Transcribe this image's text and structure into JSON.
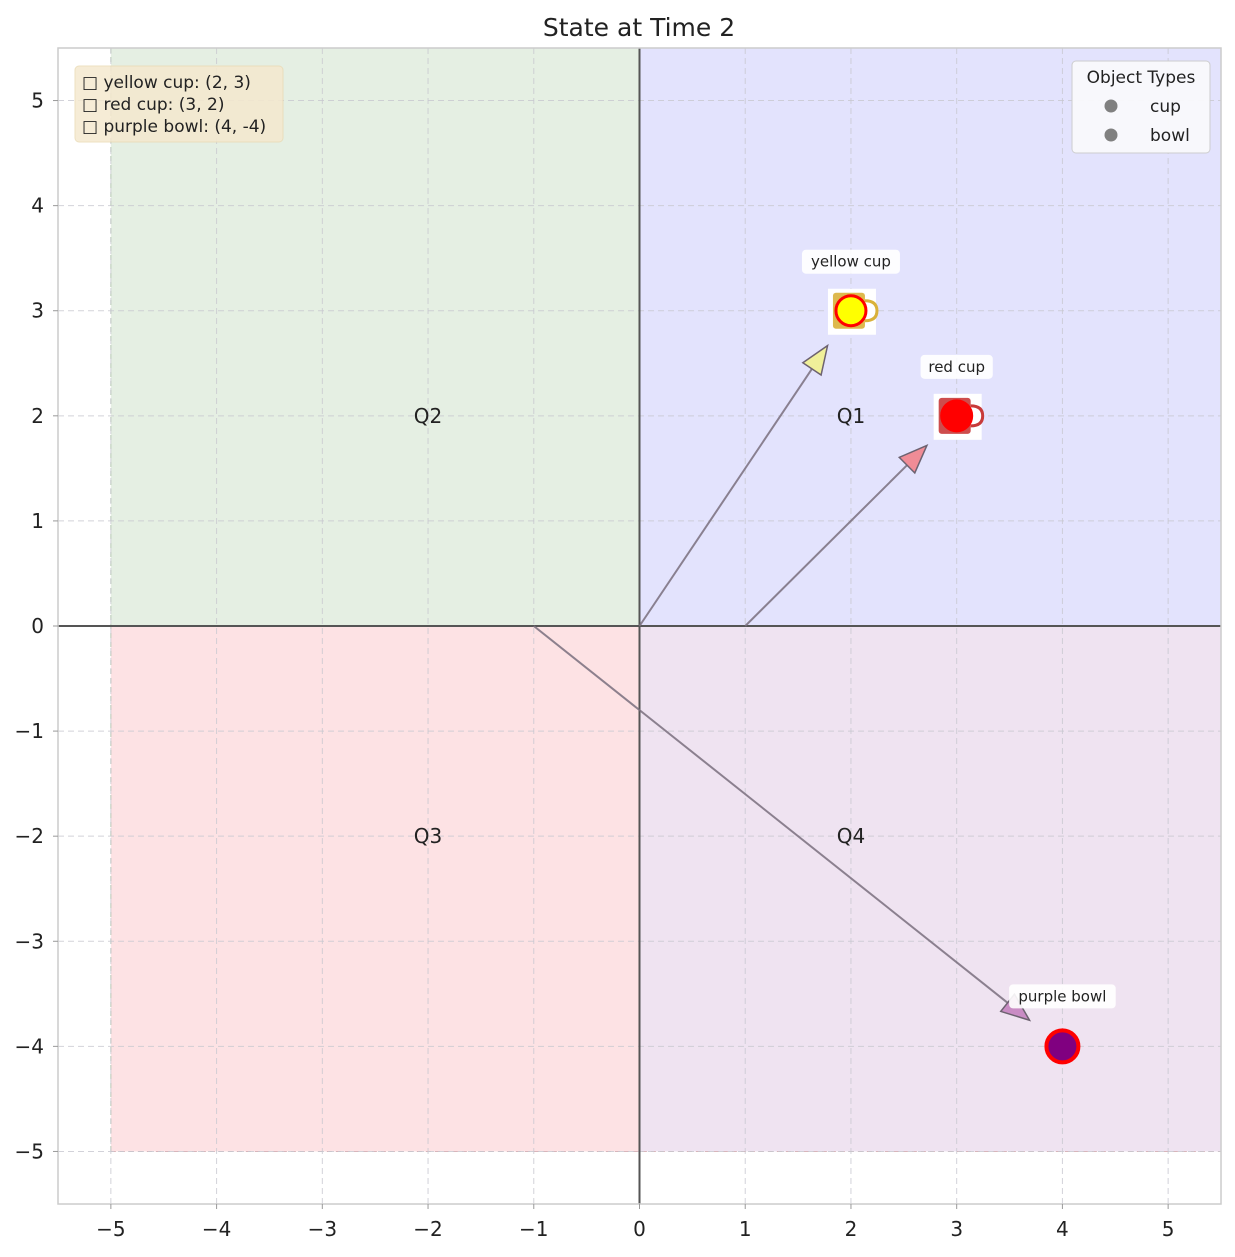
{
  "chart_data": {
    "type": "scatter",
    "title": "State at Time 2",
    "xlim": [
      -5.5,
      5.5
    ],
    "ylim": [
      -5.5,
      5.5
    ],
    "xticks": [
      -5,
      -4,
      -3,
      -2,
      -1,
      0,
      1,
      2,
      3,
      4,
      5
    ],
    "yticks": [
      -5,
      -4,
      -3,
      -2,
      -1,
      0,
      1,
      2,
      3,
      4,
      5
    ],
    "grid": true,
    "quadrants": [
      {
        "label": "Q1",
        "x": [
          0,
          5.5
        ],
        "y": [
          0,
          5.5
        ],
        "color": "#e3e3fd",
        "label_at": [
          2,
          2
        ]
      },
      {
        "label": "Q2",
        "x": [
          -5,
          0
        ],
        "y": [
          0,
          5.5
        ],
        "color": "#e5efe3",
        "label_at": [
          -2,
          2
        ]
      },
      {
        "label": "Q3",
        "x": [
          -5,
          0
        ],
        "y": [
          -5,
          0
        ],
        "color": "#fde2e4",
        "label_at": [
          -2,
          -2
        ]
      },
      {
        "label": "Q4",
        "x": [
          0,
          5.5
        ],
        "y": [
          -5,
          0
        ],
        "color": "#efe3f1",
        "label_at": [
          2,
          -2
        ]
      }
    ],
    "objects": [
      {
        "name": "yellow cup",
        "type": "cup",
        "x": 2,
        "y": 3,
        "color": "#ffff00",
        "edge": "#ff0000"
      },
      {
        "name": "red cup",
        "type": "cup",
        "x": 3,
        "y": 2,
        "color": "#ff0000",
        "edge": "#ff0000"
      },
      {
        "name": "purple bowl",
        "type": "bowl",
        "x": 4,
        "y": -4,
        "color": "#800080",
        "edge": "#ff0000"
      }
    ],
    "arrows": [
      {
        "from": [
          0,
          0
        ],
        "to": [
          2,
          3
        ],
        "head_color": "#f0f09a"
      },
      {
        "from": [
          1,
          0
        ],
        "to": [
          3,
          2
        ],
        "head_color": "#f08c96"
      },
      {
        "from": [
          -1,
          0
        ],
        "to": [
          4,
          -4
        ],
        "head_color": "#c98cc4"
      }
    ],
    "info_box": [
      "□ yellow cup: (2, 3)",
      "□ red cup: (3, 2)",
      "□ purple bowl: (4, -4)"
    ],
    "legend": {
      "title": "Object Types",
      "position": "top-right",
      "entries": [
        {
          "label": "cup",
          "color": "#808080"
        },
        {
          "label": "bowl",
          "color": "#808080"
        }
      ]
    }
  }
}
